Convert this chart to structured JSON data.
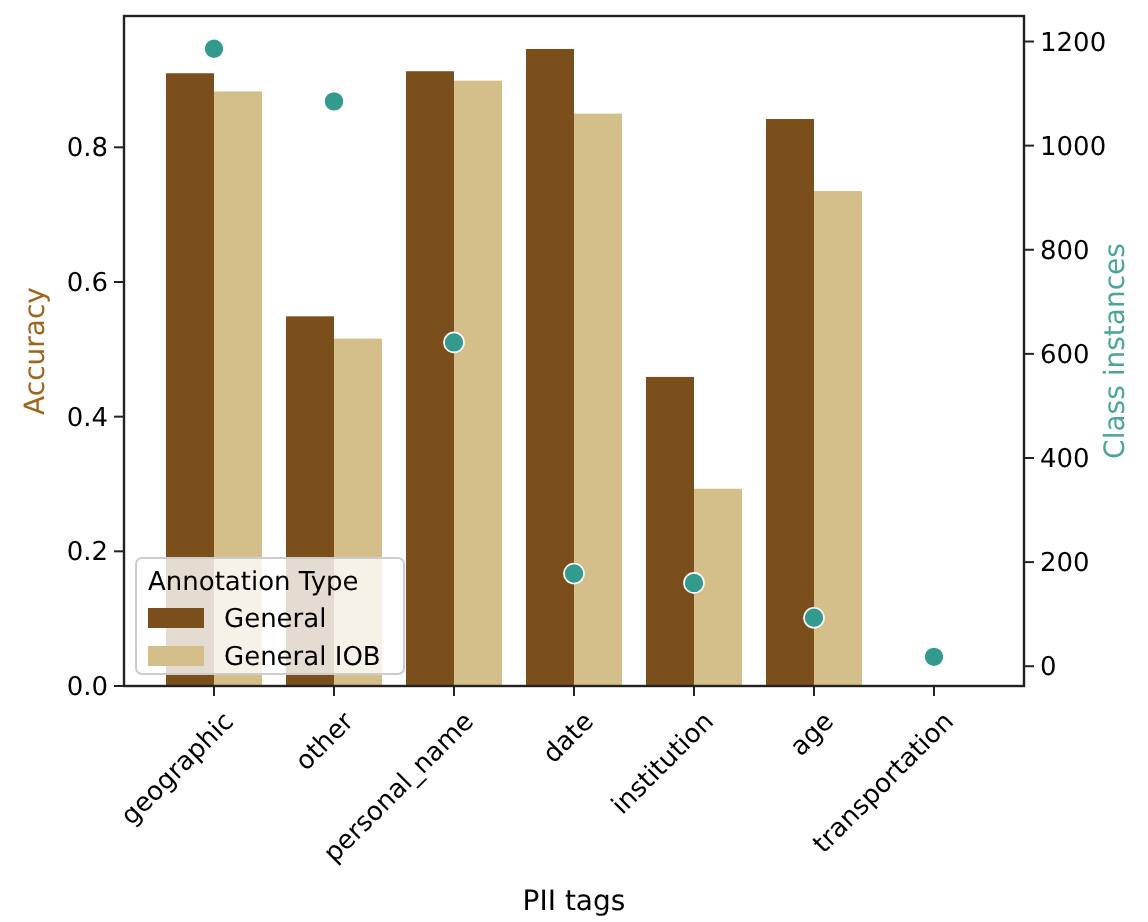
{
  "chart_data": {
    "type": "bar",
    "xlabel": "PII tags",
    "ylabel": "Accuracy",
    "y2label": "Class instances",
    "legend_title": "Annotation Type",
    "categories": [
      "geographic",
      "other",
      "personal_name",
      "date",
      "institution",
      "age",
      "transportation"
    ],
    "series": [
      {
        "name": "General",
        "color": "#7b4f1b",
        "values": [
          0.91,
          0.549,
          0.913,
          0.946,
          0.459,
          0.842,
          0
        ]
      },
      {
        "name": "General IOB",
        "color": "#d4bf8a",
        "values": [
          0.883,
          0.516,
          0.899,
          0.85,
          0.293,
          0.735,
          0
        ]
      },
      {
        "type": "scatter",
        "axis": "y2",
        "color": "#339a8e",
        "marker": "circle",
        "values": [
          1186,
          1085,
          622,
          178,
          160,
          93,
          18
        ]
      }
    ],
    "ylim": [
      0,
      0.995
    ],
    "yticks": [
      {
        "value": 0,
        "label": "0.0"
      },
      {
        "value": 0.2,
        "label": "0.2"
      },
      {
        "value": 0.4,
        "label": "0.4"
      },
      {
        "value": 0.6,
        "label": "0.6"
      },
      {
        "value": 0.8,
        "label": "0.8"
      }
    ],
    "y2lim": [
      -38,
      1249
    ],
    "y2ticks": [
      0,
      200,
      400,
      600,
      800,
      1000,
      1200
    ],
    "legend": "bottom left",
    "grid": false
  }
}
